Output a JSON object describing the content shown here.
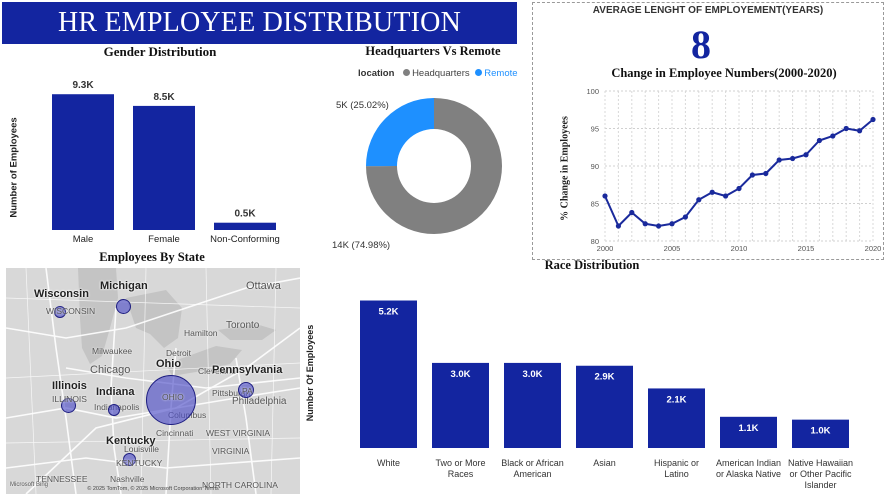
{
  "report_title": "HR EMPLOYEE DISTRIBUTION REPORT",
  "colors": {
    "primary": "#1325a0",
    "headquarters": "#808080",
    "remote": "#1e90ff",
    "line": "#1a2a9c"
  },
  "kpi": {
    "label": "AVERAGE LENGHT OF EMPLOYEMENT(YEARS)",
    "value": "8"
  },
  "gender": {
    "title": "Gender Distribution",
    "ylabel": "Number of Employees",
    "chart_data": {
      "type": "bar",
      "categories": [
        "Male",
        "Female",
        "Non-Conforming"
      ],
      "values": [
        9300,
        8500,
        500
      ],
      "data_labels": [
        "9.3K",
        "8.5K",
        "0.5K"
      ],
      "ylim": [
        0,
        10000
      ]
    }
  },
  "location": {
    "title": "Headquarters Vs Remote",
    "legend_title": "location",
    "chart_data": {
      "type": "pie",
      "categories": [
        "Headquarters",
        "Remote"
      ],
      "values": [
        74.98,
        25.02
      ],
      "data_labels": [
        "14K (74.98%)",
        "5K (25.02%)"
      ]
    }
  },
  "trend": {
    "title": "Change in Employee Numbers(2000-2020)",
    "ylabel": "% Change in Employees",
    "chart_data": {
      "type": "line",
      "x": [
        2000,
        2001,
        2002,
        2003,
        2004,
        2005,
        2006,
        2007,
        2008,
        2009,
        2010,
        2011,
        2012,
        2013,
        2014,
        2015,
        2016,
        2017,
        2018,
        2019,
        2020
      ],
      "y": [
        86.0,
        82.0,
        83.8,
        82.3,
        82.0,
        82.3,
        83.2,
        85.5,
        86.5,
        86.0,
        87.0,
        88.8,
        89.0,
        90.8,
        91.0,
        91.5,
        93.4,
        94.0,
        95.0,
        94.7,
        96.2
      ],
      "xticks": [
        2000,
        2005,
        2010,
        2015,
        2020
      ],
      "yticks": [
        80,
        85,
        90,
        95,
        100
      ],
      "ylim": [
        80,
        100
      ],
      "grid": true
    }
  },
  "map": {
    "title": "Employees By State",
    "states": [
      {
        "name": "Wisconsin",
        "abbr": "WISCONSIN"
      },
      {
        "name": "Michigan",
        "abbr": ""
      },
      {
        "name": "Illinois",
        "abbr": "ILLINOIS"
      },
      {
        "name": "Indiana",
        "abbr": "INDIANA"
      },
      {
        "name": "Ohio",
        "abbr": "OHIO"
      },
      {
        "name": "Pennsylvania",
        "abbr": "PA"
      },
      {
        "name": "Kentucky",
        "abbr": "KENTUCKY"
      }
    ],
    "cities": [
      "Ottawa",
      "Toronto",
      "Hamilton",
      "Milwaukee",
      "Chicago",
      "Detroit",
      "Cleveland",
      "Pittsburgh",
      "Philadelphia",
      "Columbus",
      "Indianapolis",
      "Cincinnati",
      "Louisville",
      "Nashville",
      "VIRGINIA",
      "WEST VIRGINIA",
      "NORTH CAROLINA",
      "TENNESSEE"
    ],
    "credit": "© 2025 TomTom, © 2025 Microsoft Corporation  Terms",
    "brand": "Microsoft Bing"
  },
  "race": {
    "title": "Race Distribution",
    "ylabel": "Number Of Employees",
    "chart_data": {
      "type": "bar",
      "categories": [
        "White",
        "Two or More Races",
        "Black or African American",
        "Asian",
        "Hispanic or Latino",
        "American Indian or Alaska Native",
        "Native Hawaiian or Other Pacific Islander"
      ],
      "values": [
        5200,
        3000,
        3000,
        2900,
        2100,
        1100,
        1000
      ],
      "data_labels": [
        "5.2K",
        "3.0K",
        "3.0K",
        "2.9K",
        "2.1K",
        "1.1K",
        "1.0K"
      ],
      "ylim": [
        0,
        5500
      ]
    }
  }
}
